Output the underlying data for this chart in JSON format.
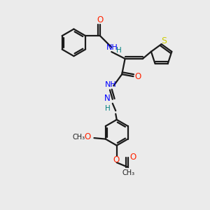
{
  "bg_color": "#ebebeb",
  "bond_color": "#1a1a1a",
  "N_color": "#0000ff",
  "O_color": "#ff2200",
  "S_color": "#cccc00",
  "H_color": "#008080",
  "line_width": 1.6,
  "figsize": [
    3.0,
    3.0
  ],
  "dpi": 100,
  "xlim": [
    0,
    10
  ],
  "ylim": [
    0,
    10
  ]
}
